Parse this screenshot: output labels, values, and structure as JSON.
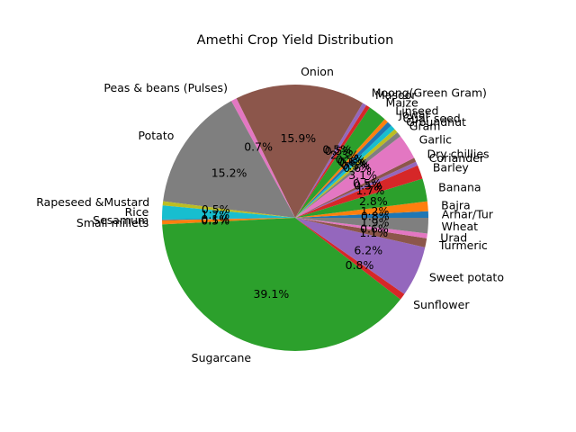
{
  "chart_data": {
    "type": "pie",
    "title": "Amethi Crop Yield Distribution",
    "slices": [
      {
        "label": "Arhar/Tur",
        "pct": 0.8,
        "color": "#1f77b4"
      },
      {
        "label": "Bajra",
        "pct": 1.2,
        "color": "#ff7f0e"
      },
      {
        "label": "Banana",
        "pct": 2.8,
        "color": "#2ca02c"
      },
      {
        "label": "Barley",
        "pct": 1.7,
        "color": "#d62728"
      },
      {
        "label": "Coriander",
        "pct": 0.5,
        "color": "#9467bd"
      },
      {
        "label": "Dry chillies",
        "pct": 0.5,
        "color": "#8c564b"
      },
      {
        "label": "Garlic",
        "pct": 3.1,
        "color": "#e377c2"
      },
      {
        "label": "Gram",
        "pct": 0.6,
        "color": "#7f7f7f"
      },
      {
        "label": "Groundnut",
        "pct": 0.5,
        "color": "#bcbd22"
      },
      {
        "label": "Guar seed",
        "pct": 0.6,
        "color": "#17becf"
      },
      {
        "label": "Jowar",
        "pct": 0.6,
        "color": "#1f77b4"
      },
      {
        "label": "Linseed",
        "pct": 0.5,
        "color": "#ff7f0e"
      },
      {
        "label": "Maize",
        "pct": 2.3,
        "color": "#2ca02c"
      },
      {
        "label": "Masoor",
        "pct": 0.5,
        "color": "#d62728"
      },
      {
        "label": "Moong(Green Gram)",
        "pct": 0.5,
        "color": "#9467bd"
      },
      {
        "label": "Onion",
        "pct": 15.9,
        "color": "#8c564b"
      },
      {
        "label": "Peas & beans (Pulses)",
        "pct": 0.7,
        "color": "#e377c2"
      },
      {
        "label": "Potato",
        "pct": 15.2,
        "color": "#7f7f7f"
      },
      {
        "label": "Rapeseed &Mustard",
        "pct": 0.5,
        "color": "#bcbd22"
      },
      {
        "label": "Rice",
        "pct": 1.7,
        "color": "#17becf"
      },
      {
        "label": "Sesamum",
        "pct": 0.1,
        "color": "#1f77b4"
      },
      {
        "label": "Small millets",
        "pct": 0.5,
        "color": "#ff7f0e"
      },
      {
        "label": "Sugarcane",
        "pct": 39.1,
        "color": "#2ca02c"
      },
      {
        "label": "Sunflower",
        "pct": 0.8,
        "color": "#d62728"
      },
      {
        "label": "Sweet potato",
        "pct": 6.2,
        "color": "#9467bd"
      },
      {
        "label": "Turmeric",
        "pct": 1.1,
        "color": "#8c564b"
      },
      {
        "label": "Urad",
        "pct": 0.6,
        "color": "#e377c2"
      },
      {
        "label": "Wheat",
        "pct": 1.9,
        "color": "#7f7f7f"
      }
    ],
    "start_angle_deg": 0,
    "direction": "counterclockwise",
    "autopct_format": "%.1f%%"
  }
}
